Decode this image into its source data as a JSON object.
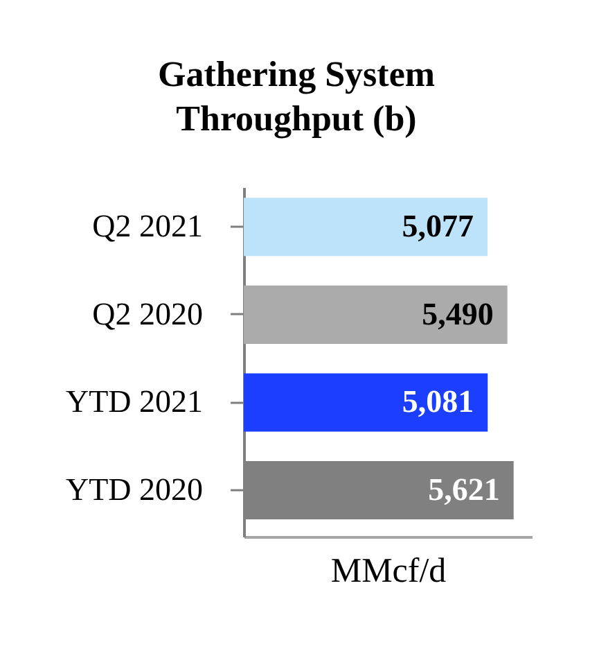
{
  "chart_data": {
    "type": "bar",
    "orientation": "horizontal",
    "title": "Gathering System Throughput (b)",
    "xlabel": "MMcf/d",
    "categories": [
      "Q2 2021",
      "Q2 2020",
      "YTD 2021",
      "YTD 2020"
    ],
    "values": [
      5077,
      5490,
      5081,
      5621
    ],
    "value_labels": [
      "5,077",
      "5,490",
      "5,081",
      "5,621"
    ],
    "colors": [
      "#bde3fb",
      "#ababab",
      "#1c3fff",
      "#808080"
    ],
    "tick_labels": "y"
  }
}
